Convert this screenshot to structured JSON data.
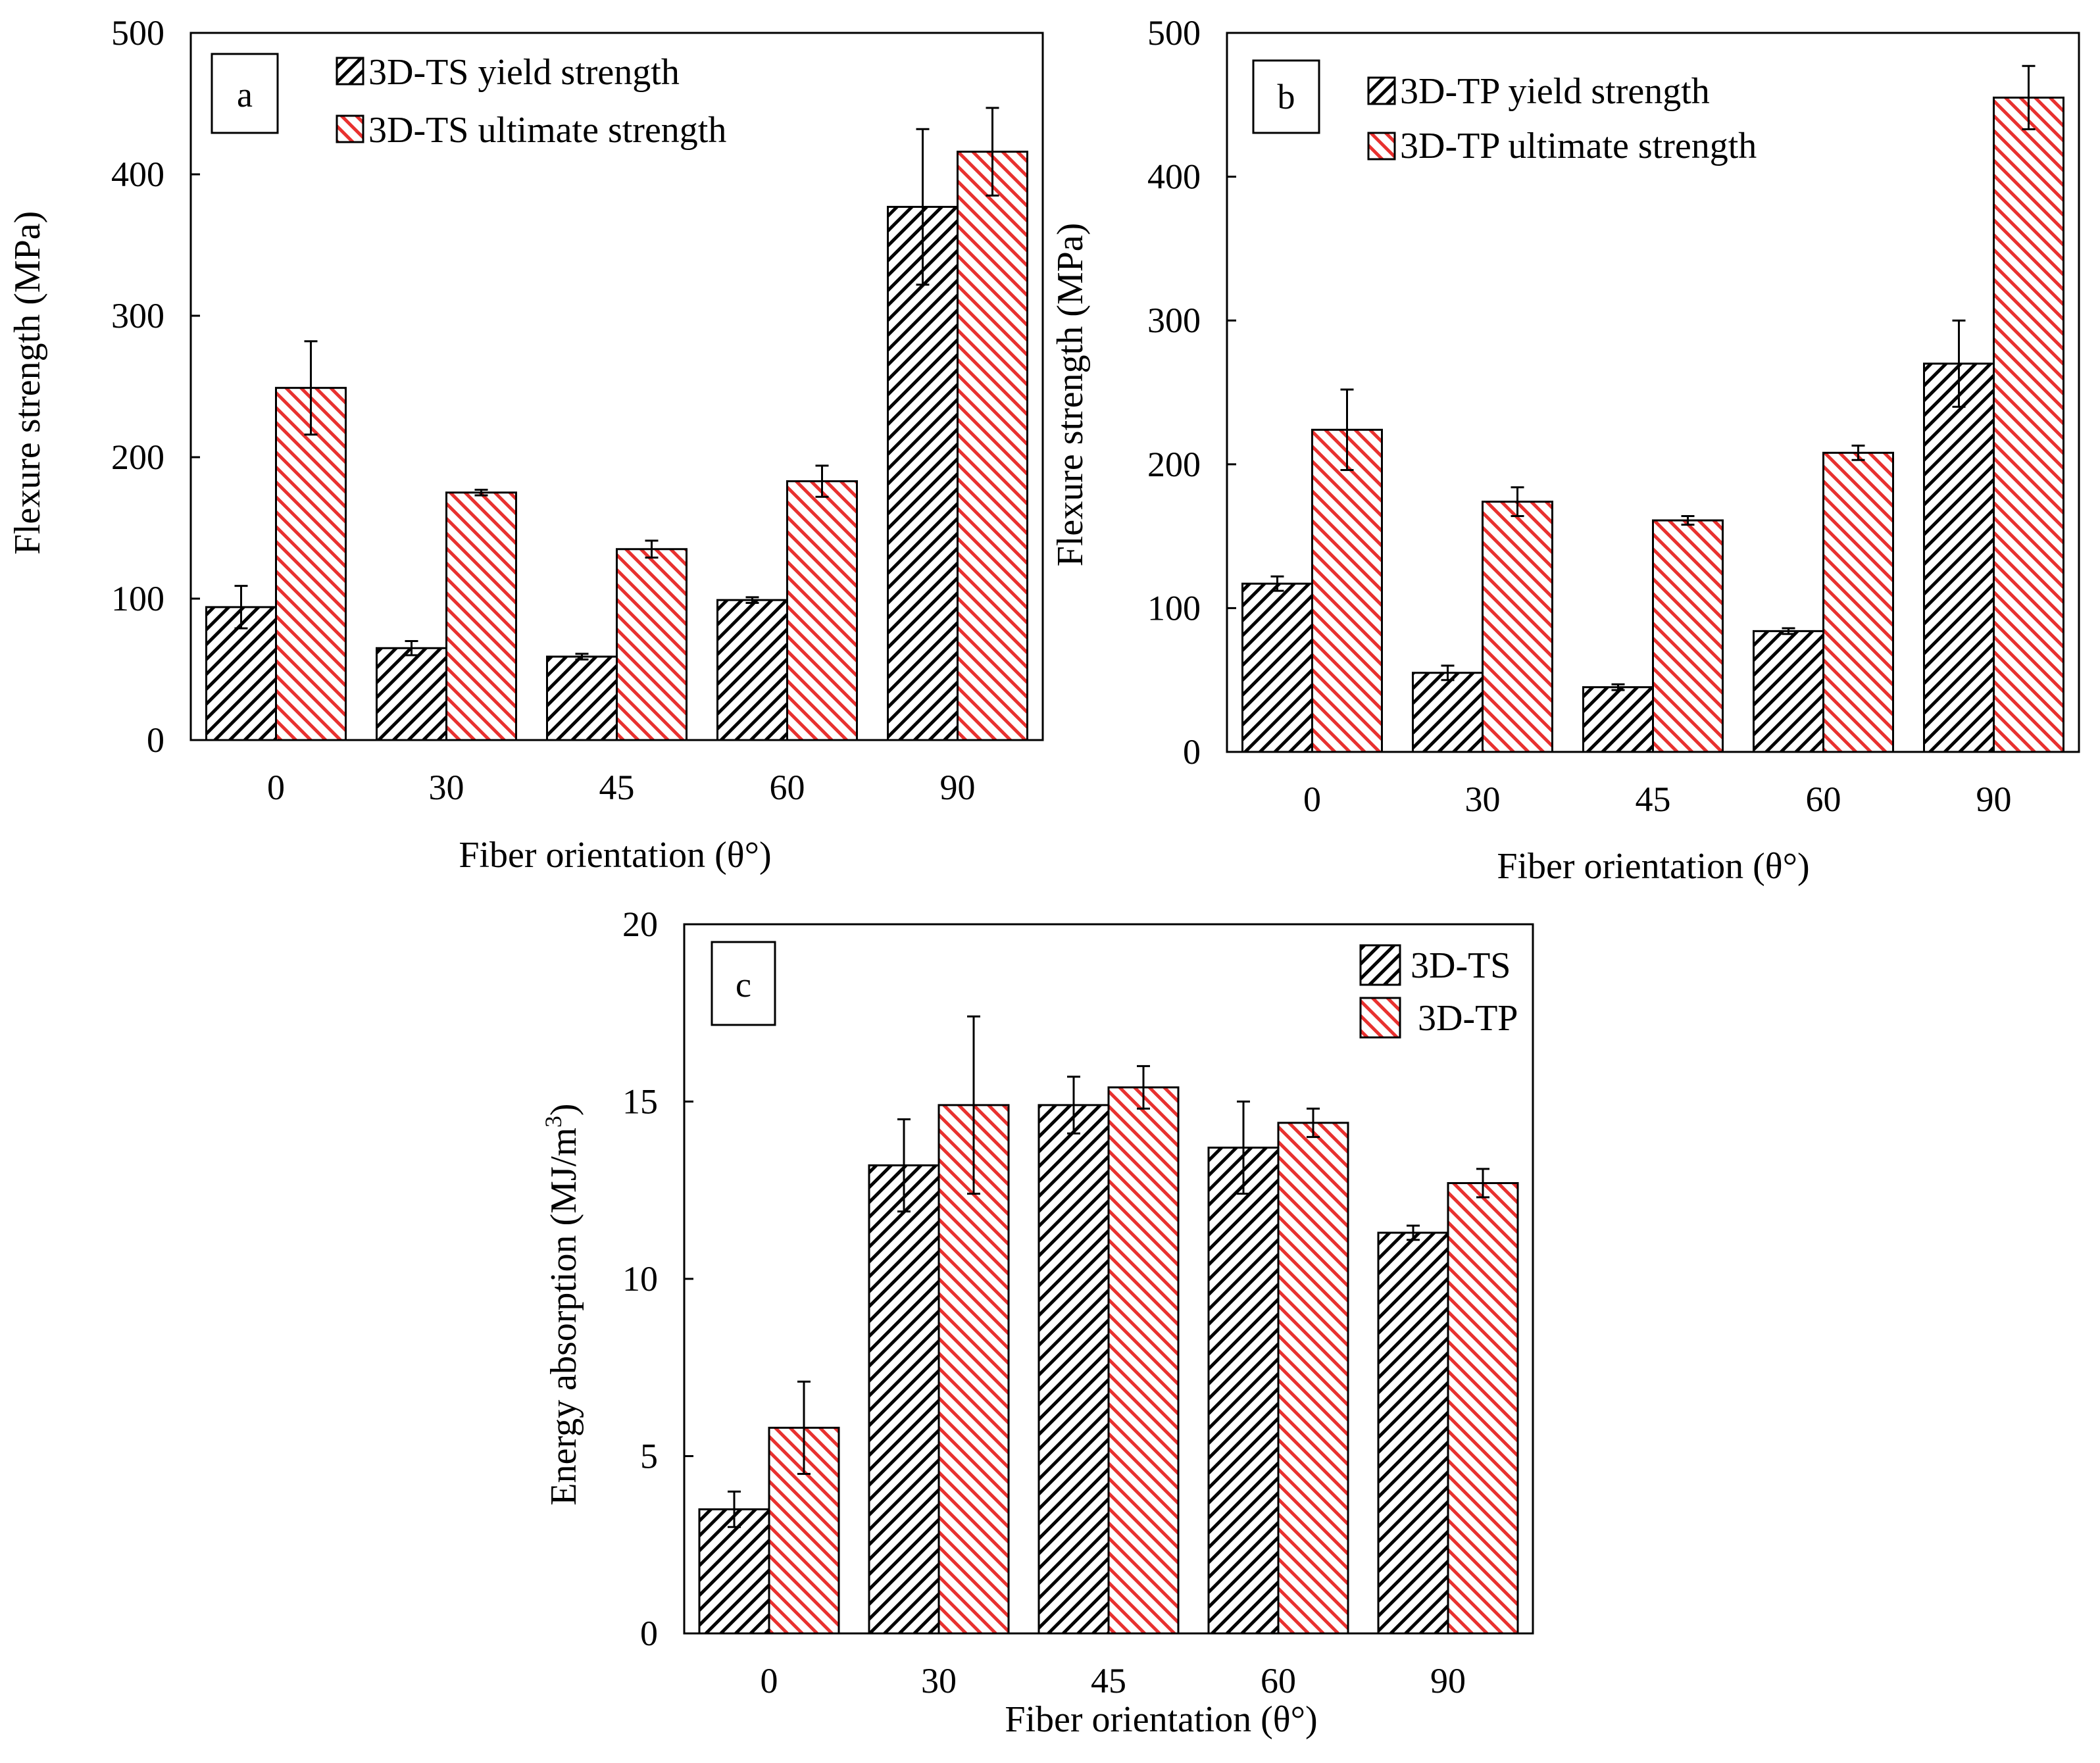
{
  "chart_data": [
    {
      "panel": "a",
      "type": "bar",
      "xlabel": "Fiber orientation (θ°)",
      "ylabel": "Flexure strength (MPa)",
      "categories": [
        "0",
        "30",
        "45",
        "60",
        "90"
      ],
      "yticks": [
        "0",
        "100",
        "200",
        "300",
        "400",
        "500"
      ],
      "ylim": [
        0,
        500
      ],
      "legend_position": "top-left",
      "series": [
        {
          "name": "3D-TS yield strength",
          "values": [
            94,
            65,
            59,
            99,
            377
          ],
          "errors": [
            15,
            5,
            2,
            2,
            55
          ],
          "pattern": "black-hatch"
        },
        {
          "name": "3D-TS ultimate strength",
          "values": [
            249,
            175,
            135,
            183,
            416
          ],
          "errors": [
            33,
            2,
            6,
            11,
            31
          ],
          "pattern": "red-hatch"
        }
      ]
    },
    {
      "panel": "b",
      "type": "bar",
      "xlabel": "Fiber orientation (θ°)",
      "ylabel": "Flexure strength (MPa)",
      "categories": [
        "0",
        "30",
        "45",
        "60",
        "90"
      ],
      "yticks": [
        "0",
        "100",
        "200",
        "300",
        "400",
        "500"
      ],
      "ylim": [
        0,
        500
      ],
      "legend_position": "top-left",
      "series": [
        {
          "name": "3D-TP yield strength",
          "values": [
            117,
            55,
            45,
            84,
            270
          ],
          "errors": [
            5,
            5,
            2,
            2,
            30
          ],
          "pattern": "black-hatch"
        },
        {
          "name": "3D-TP ultimate strength",
          "values": [
            224,
            174,
            161,
            208,
            455
          ],
          "errors": [
            28,
            10,
            3,
            5,
            22
          ],
          "pattern": "red-hatch"
        }
      ]
    },
    {
      "panel": "c",
      "type": "bar",
      "xlabel": "Fiber orientation (θ°)",
      "ylabel": "Energy absorption (MJ/m",
      "ylabel_sup": "3",
      "ylabel_close": ")",
      "categories": [
        "0",
        "30",
        "45",
        "60",
        "90"
      ],
      "yticks": [
        "0",
        "5",
        "10",
        "15",
        "20"
      ],
      "ylim": [
        0,
        20
      ],
      "legend_position": "top-right",
      "series": [
        {
          "name": "3D-TS",
          "values": [
            3.5,
            13.2,
            14.9,
            13.7,
            11.3
          ],
          "errors": [
            0.5,
            1.3,
            0.8,
            1.3,
            0.2
          ],
          "pattern": "black-hatch"
        },
        {
          "name": "3D-TP",
          "values": [
            5.8,
            14.9,
            15.4,
            14.4,
            12.7
          ],
          "errors": [
            1.3,
            2.5,
            0.6,
            0.4,
            0.4
          ],
          "pattern": "red-hatch"
        }
      ]
    }
  ],
  "colors": {
    "black_hatch": "#000000",
    "red_hatch": "#e8312f",
    "background": "#ffffff"
  }
}
